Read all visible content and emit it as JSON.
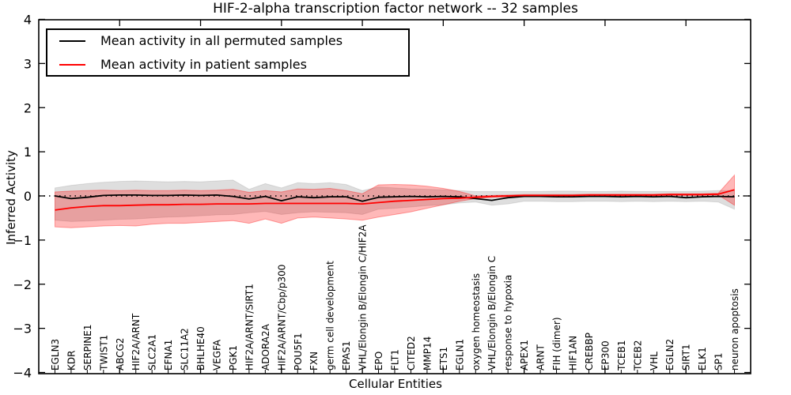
{
  "chart_data": {
    "type": "line",
    "title": "HIF-2-alpha transcription factor network -- 32 samples",
    "xlabel": "Cellular Entities",
    "ylabel": "Inferred Activity",
    "ylim": [
      -4,
      4
    ],
    "yticks": [
      -4,
      -3,
      -2,
      -1,
      0,
      1,
      2,
      3,
      4
    ],
    "grid": false,
    "legend_position": "upper left",
    "zero_reference_line": "dotted",
    "categories": [
      "EGLN3",
      "KDR",
      "SERPINE1",
      "TWIST1",
      "ABCG2",
      "HIF2A/ARNT",
      "SLC2A1",
      "EFNA1",
      "SLC11A2",
      "BHLHE40",
      "VEGFA",
      "PGK1",
      "HIF2A/ARNT/SIRT1",
      "ADORA2A",
      "HIF2A/ARNT/Cbp/p300",
      "POU5F1",
      "FXN",
      "germ cell development",
      "EPAS1",
      "VHL/Elongin B/Elongin C/HIF2A",
      "EPO",
      "FLT1",
      "CITED2",
      "MMP14",
      "ETS1",
      "EGLN1",
      "oxygen homeostasis",
      "VHL/Elongin B/Elongin C",
      "response to hypoxia",
      "APEX1",
      "ARNT",
      "FIH (dimer)",
      "HIF1AN",
      "CREBBP",
      "EP300",
      "TCEB1",
      "TCEB2",
      "VHL",
      "EGLN2",
      "SIRT1",
      "ELK1",
      "SP1",
      "neuron apoptosis"
    ],
    "series": [
      {
        "name": "Mean activity in all permuted samples",
        "color": "#000000",
        "values": [
          0.0,
          -0.06,
          -0.03,
          0.01,
          0.02,
          0.02,
          0.01,
          0.01,
          0.02,
          0.01,
          0.02,
          -0.01,
          -0.07,
          -0.01,
          -0.11,
          -0.02,
          -0.04,
          -0.02,
          -0.02,
          -0.12,
          -0.03,
          -0.02,
          -0.01,
          -0.02,
          -0.01,
          -0.02,
          -0.06,
          -0.1,
          -0.04,
          -0.01,
          -0.01,
          -0.02,
          -0.02,
          -0.01,
          -0.01,
          -0.02,
          -0.01,
          -0.02,
          -0.01,
          -0.04,
          -0.02,
          -0.01,
          -0.02
        ]
      },
      {
        "name": "Mean activity in patient samples",
        "color": "#ff0000",
        "values": [
          -0.32,
          -0.27,
          -0.24,
          -0.22,
          -0.22,
          -0.21,
          -0.2,
          -0.2,
          -0.19,
          -0.19,
          -0.18,
          -0.18,
          -0.18,
          -0.17,
          -0.17,
          -0.17,
          -0.17,
          -0.17,
          -0.17,
          -0.18,
          -0.15,
          -0.12,
          -0.1,
          -0.08,
          -0.06,
          -0.05,
          -0.03,
          -0.01,
          0.0,
          0.01,
          0.01,
          0.01,
          0.01,
          0.02,
          0.02,
          0.02,
          0.02,
          0.02,
          0.03,
          0.03,
          0.03,
          0.04,
          0.14
        ]
      }
    ],
    "bands": [
      {
        "name": "permuted-samples-spread",
        "color": "rgba(0,0,0,0.13)",
        "edge_color": "rgba(0,0,0,0.10)",
        "hi": [
          0.18,
          0.24,
          0.28,
          0.31,
          0.33,
          0.34,
          0.33,
          0.32,
          0.33,
          0.32,
          0.34,
          0.36,
          0.15,
          0.28,
          0.18,
          0.3,
          0.28,
          0.3,
          0.26,
          0.12,
          0.2,
          0.18,
          0.16,
          0.15,
          0.14,
          0.12,
          0.1,
          0.1,
          0.1,
          0.1,
          0.1,
          0.11,
          0.11,
          0.1,
          0.1,
          0.11,
          0.1,
          0.1,
          0.1,
          0.1,
          0.11,
          0.12,
          0.12
        ],
        "lo": [
          -0.55,
          -0.58,
          -0.57,
          -0.55,
          -0.53,
          -0.52,
          -0.5,
          -0.48,
          -0.47,
          -0.45,
          -0.43,
          -0.42,
          -0.38,
          -0.35,
          -0.42,
          -0.38,
          -0.36,
          -0.37,
          -0.38,
          -0.42,
          -0.3,
          -0.28,
          -0.25,
          -0.22,
          -0.2,
          -0.16,
          -0.14,
          -0.21,
          -0.18,
          -0.12,
          -0.12,
          -0.13,
          -0.13,
          -0.12,
          -0.12,
          -0.13,
          -0.12,
          -0.13,
          -0.12,
          -0.13,
          -0.12,
          -0.14,
          -0.3
        ]
      },
      {
        "name": "patient-samples-spread",
        "color": "rgba(255,0,0,0.28)",
        "edge_color": "rgba(255,0,0,0.35)",
        "hi": [
          0.09,
          0.11,
          0.12,
          0.13,
          0.12,
          0.13,
          0.12,
          0.12,
          0.13,
          0.12,
          0.13,
          0.15,
          0.08,
          0.12,
          0.09,
          0.16,
          0.15,
          0.17,
          0.12,
          0.05,
          0.25,
          0.26,
          0.25,
          0.22,
          0.17,
          0.1,
          0.0,
          0.01,
          0.02,
          0.03,
          0.03,
          0.03,
          0.03,
          0.04,
          0.04,
          0.04,
          0.04,
          0.04,
          0.05,
          0.05,
          0.05,
          0.06,
          0.47
        ],
        "lo": [
          -0.7,
          -0.72,
          -0.7,
          -0.68,
          -0.67,
          -0.68,
          -0.64,
          -0.62,
          -0.62,
          -0.6,
          -0.58,
          -0.56,
          -0.62,
          -0.52,
          -0.62,
          -0.5,
          -0.48,
          -0.5,
          -0.52,
          -0.55,
          -0.48,
          -0.42,
          -0.36,
          -0.28,
          -0.2,
          -0.12,
          -0.06,
          -0.03,
          -0.02,
          -0.01,
          -0.01,
          -0.01,
          -0.01,
          0.0,
          0.0,
          0.0,
          0.0,
          0.0,
          0.01,
          0.01,
          0.01,
          0.02,
          -0.21
        ]
      }
    ]
  },
  "legend": {
    "entries": [
      {
        "label": "Mean activity in all permuted samples",
        "color": "#000000"
      },
      {
        "label": "Mean activity in patient samples",
        "color": "#ff0000"
      }
    ]
  }
}
